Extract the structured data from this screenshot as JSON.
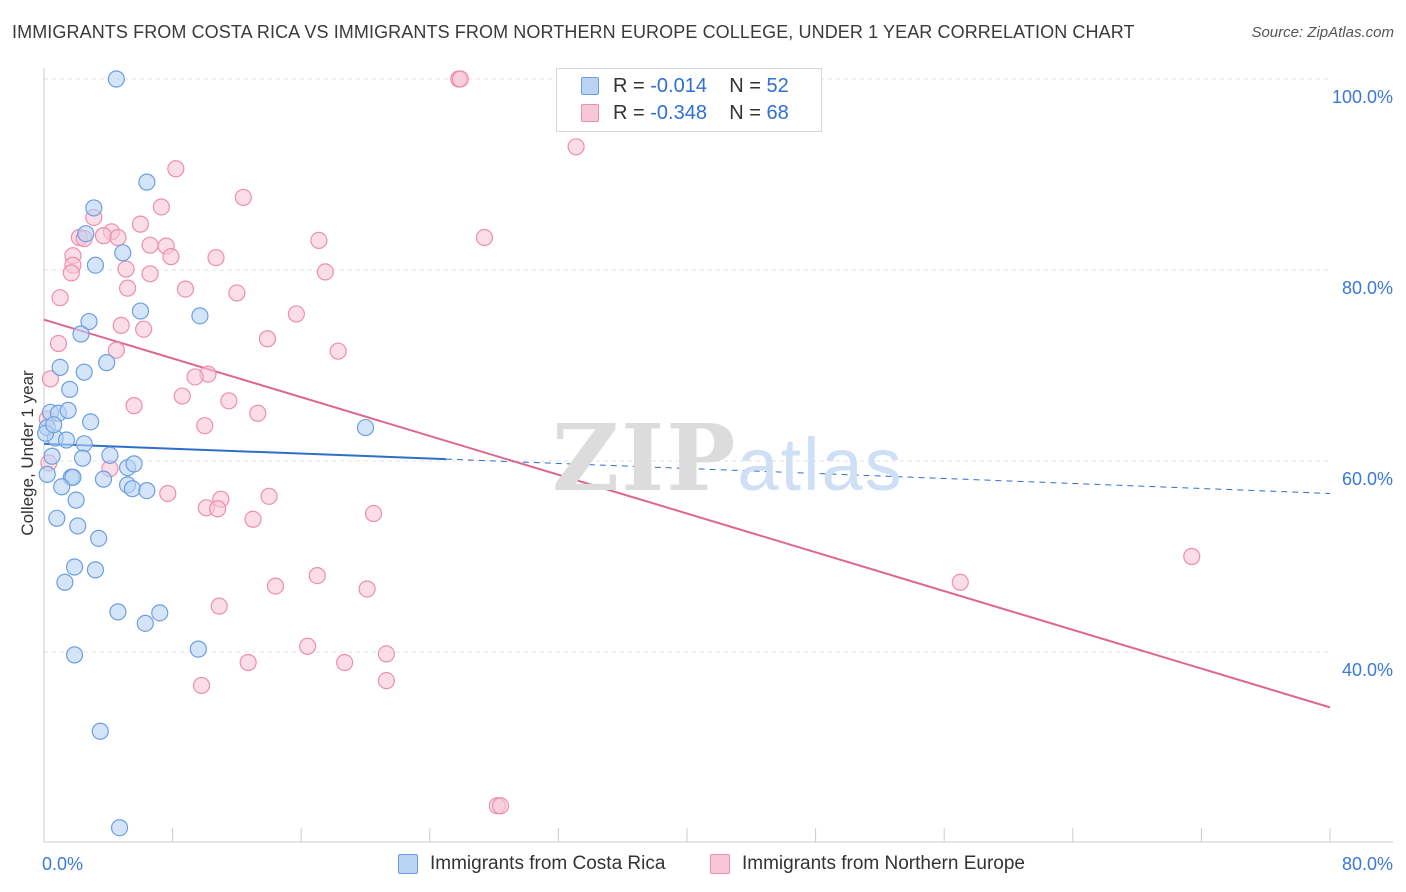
{
  "title": "IMMIGRANTS FROM COSTA RICA VS IMMIGRANTS FROM NORTHERN EUROPE COLLEGE, UNDER 1 YEAR CORRELATION CHART",
  "source": "Source: ZipAtlas.com",
  "watermark": {
    "zip": "ZIP",
    "atlas": "atlas"
  },
  "colors": {
    "blue_fill": "#b9d3f5",
    "blue_stroke": "#6d9fe0",
    "blue_line": "#2e6fc9",
    "pink_fill": "#f8c7d7",
    "pink_stroke": "#ec8fad",
    "pink_line": "#e0668f",
    "axis_text": "#3b78d8",
    "grid": "#e3e3e3"
  },
  "legend": {
    "rows": [
      {
        "r_label": "R =",
        "r_value": "-0.014",
        "n_label": "N =",
        "n_value": "52"
      },
      {
        "r_label": "R =",
        "r_value": "-0.348",
        "n_label": "N =",
        "n_value": "68"
      }
    ]
  },
  "bottom_legend": [
    "Immigrants from Costa Rica",
    "Immigrants from Northern Europe"
  ],
  "chart_data": {
    "type": "scatter",
    "title": "IMMIGRANTS FROM COSTA RICA VS IMMIGRANTS FROM NORTHERN EUROPE COLLEGE, UNDER 1 YEAR CORRELATION CHART",
    "xlabel": "",
    "ylabel": "College, Under 1 year",
    "xlim": [
      0,
      80
    ],
    "ylim": [
      21,
      102
    ],
    "x_tick_labels": [
      "0.0%",
      "80.0%"
    ],
    "y_tick_labels": [
      "100.0%",
      "80.0%",
      "60.0%",
      "40.0%"
    ],
    "y_ticks": [
      100,
      80,
      60,
      40
    ],
    "grid": true,
    "legend_placement": "top-center",
    "series": [
      {
        "name": "Immigrants from Costa Rica",
        "points": [
          [
            4.5,
            100
          ],
          [
            6.4,
            89.2
          ],
          [
            3.1,
            86.5
          ],
          [
            2.6,
            83.8
          ],
          [
            4.9,
            81.8
          ],
          [
            3.2,
            80.5
          ],
          [
            6,
            75.7
          ],
          [
            9.7,
            75.2
          ],
          [
            2.8,
            74.6
          ],
          [
            2.3,
            73.3
          ],
          [
            3.9,
            70.3
          ],
          [
            1,
            69.8
          ],
          [
            2.5,
            69.3
          ],
          [
            1.6,
            67.5
          ],
          [
            0.4,
            65.1
          ],
          [
            0.9,
            65
          ],
          [
            1.5,
            65.3
          ],
          [
            2.9,
            64.1
          ],
          [
            0.2,
            63.5
          ],
          [
            20,
            63.5
          ],
          [
            0.7,
            62.4
          ],
          [
            1.4,
            62.2
          ],
          [
            2.5,
            61.8
          ],
          [
            0.5,
            60.5
          ],
          [
            4.1,
            60.6
          ],
          [
            2.4,
            60.3
          ],
          [
            5.2,
            59.3
          ],
          [
            5.6,
            59.7
          ],
          [
            1.7,
            58.3
          ],
          [
            1.8,
            58.3
          ],
          [
            0.2,
            58.6
          ],
          [
            3.7,
            58.1
          ],
          [
            5.2,
            57.5
          ],
          [
            1.1,
            57.3
          ],
          [
            5.5,
            57.1
          ],
          [
            6.4,
            56.9
          ],
          [
            2,
            55.9
          ],
          [
            0.8,
            54
          ],
          [
            2.1,
            53.2
          ],
          [
            3.4,
            51.9
          ],
          [
            1.9,
            48.9
          ],
          [
            3.2,
            48.6
          ],
          [
            1.3,
            47.3
          ],
          [
            4.6,
            44.2
          ],
          [
            7.2,
            44.1
          ],
          [
            6.3,
            43
          ],
          [
            9.6,
            40.3
          ],
          [
            1.9,
            39.7
          ],
          [
            3.5,
            31.7
          ],
          [
            4.7,
            21.6
          ],
          [
            0.1,
            62.9
          ],
          [
            0.6,
            63.8
          ]
        ]
      },
      {
        "name": "Immigrants from Northern Europe",
        "points": [
          [
            25.8,
            100
          ],
          [
            25.9,
            100
          ],
          [
            33.1,
            92.9
          ],
          [
            8.2,
            90.6
          ],
          [
            12.4,
            87.6
          ],
          [
            7.3,
            86.6
          ],
          [
            3.1,
            85.5
          ],
          [
            6,
            84.8
          ],
          [
            4.2,
            84
          ],
          [
            3.7,
            83.6
          ],
          [
            2.2,
            83.4
          ],
          [
            2.5,
            83.3
          ],
          [
            4.6,
            83.4
          ],
          [
            27.4,
            83.4
          ],
          [
            17.1,
            83.1
          ],
          [
            6.6,
            82.6
          ],
          [
            7.6,
            82.5
          ],
          [
            1.8,
            81.5
          ],
          [
            7.9,
            81.4
          ],
          [
            10.7,
            81.3
          ],
          [
            1.8,
            80.5
          ],
          [
            5.1,
            80.1
          ],
          [
            1.7,
            79.7
          ],
          [
            17.5,
            79.8
          ],
          [
            6.6,
            79.6
          ],
          [
            5.2,
            78.1
          ],
          [
            8.8,
            78
          ],
          [
            12,
            77.6
          ],
          [
            1,
            77.1
          ],
          [
            15.7,
            75.4
          ],
          [
            4.8,
            74.2
          ],
          [
            6.2,
            73.8
          ],
          [
            13.9,
            72.8
          ],
          [
            18.3,
            71.5
          ],
          [
            4.5,
            71.6
          ],
          [
            0.9,
            72.3
          ],
          [
            10.2,
            69.1
          ],
          [
            9.4,
            68.8
          ],
          [
            8.6,
            66.8
          ],
          [
            11.5,
            66.3
          ],
          [
            5.6,
            65.8
          ],
          [
            13.3,
            65
          ],
          [
            10,
            63.7
          ],
          [
            7.7,
            56.6
          ],
          [
            10.1,
            55.1
          ],
          [
            11,
            56
          ],
          [
            14,
            56.3
          ],
          [
            10.8,
            55
          ],
          [
            20.5,
            54.5
          ],
          [
            13,
            53.9
          ],
          [
            0.3,
            59.8
          ],
          [
            0.4,
            68.6
          ],
          [
            0.2,
            64.4
          ],
          [
            4.1,
            59.2
          ],
          [
            17,
            48
          ],
          [
            14.4,
            46.9
          ],
          [
            20.1,
            46.6
          ],
          [
            71.4,
            50
          ],
          [
            57,
            47.3
          ],
          [
            10.9,
            44.8
          ],
          [
            16.4,
            40.6
          ],
          [
            21.3,
            39.8
          ],
          [
            12.7,
            38.9
          ],
          [
            18.7,
            38.9
          ],
          [
            9.8,
            36.5
          ],
          [
            21.3,
            37
          ],
          [
            28.2,
            23.9
          ],
          [
            28.4,
            23.9
          ]
        ]
      }
    ],
    "trend_lines": [
      {
        "series": "Immigrants from Costa Rica",
        "solid": [
          [
            0,
            61.8
          ],
          [
            25,
            60.2
          ]
        ],
        "dashed": [
          [
            25,
            60.2
          ],
          [
            80,
            56.6
          ]
        ]
      },
      {
        "series": "Immigrants from Northern Europe",
        "solid": [
          [
            0,
            74.8
          ],
          [
            80,
            34.2
          ]
        ]
      }
    ]
  }
}
